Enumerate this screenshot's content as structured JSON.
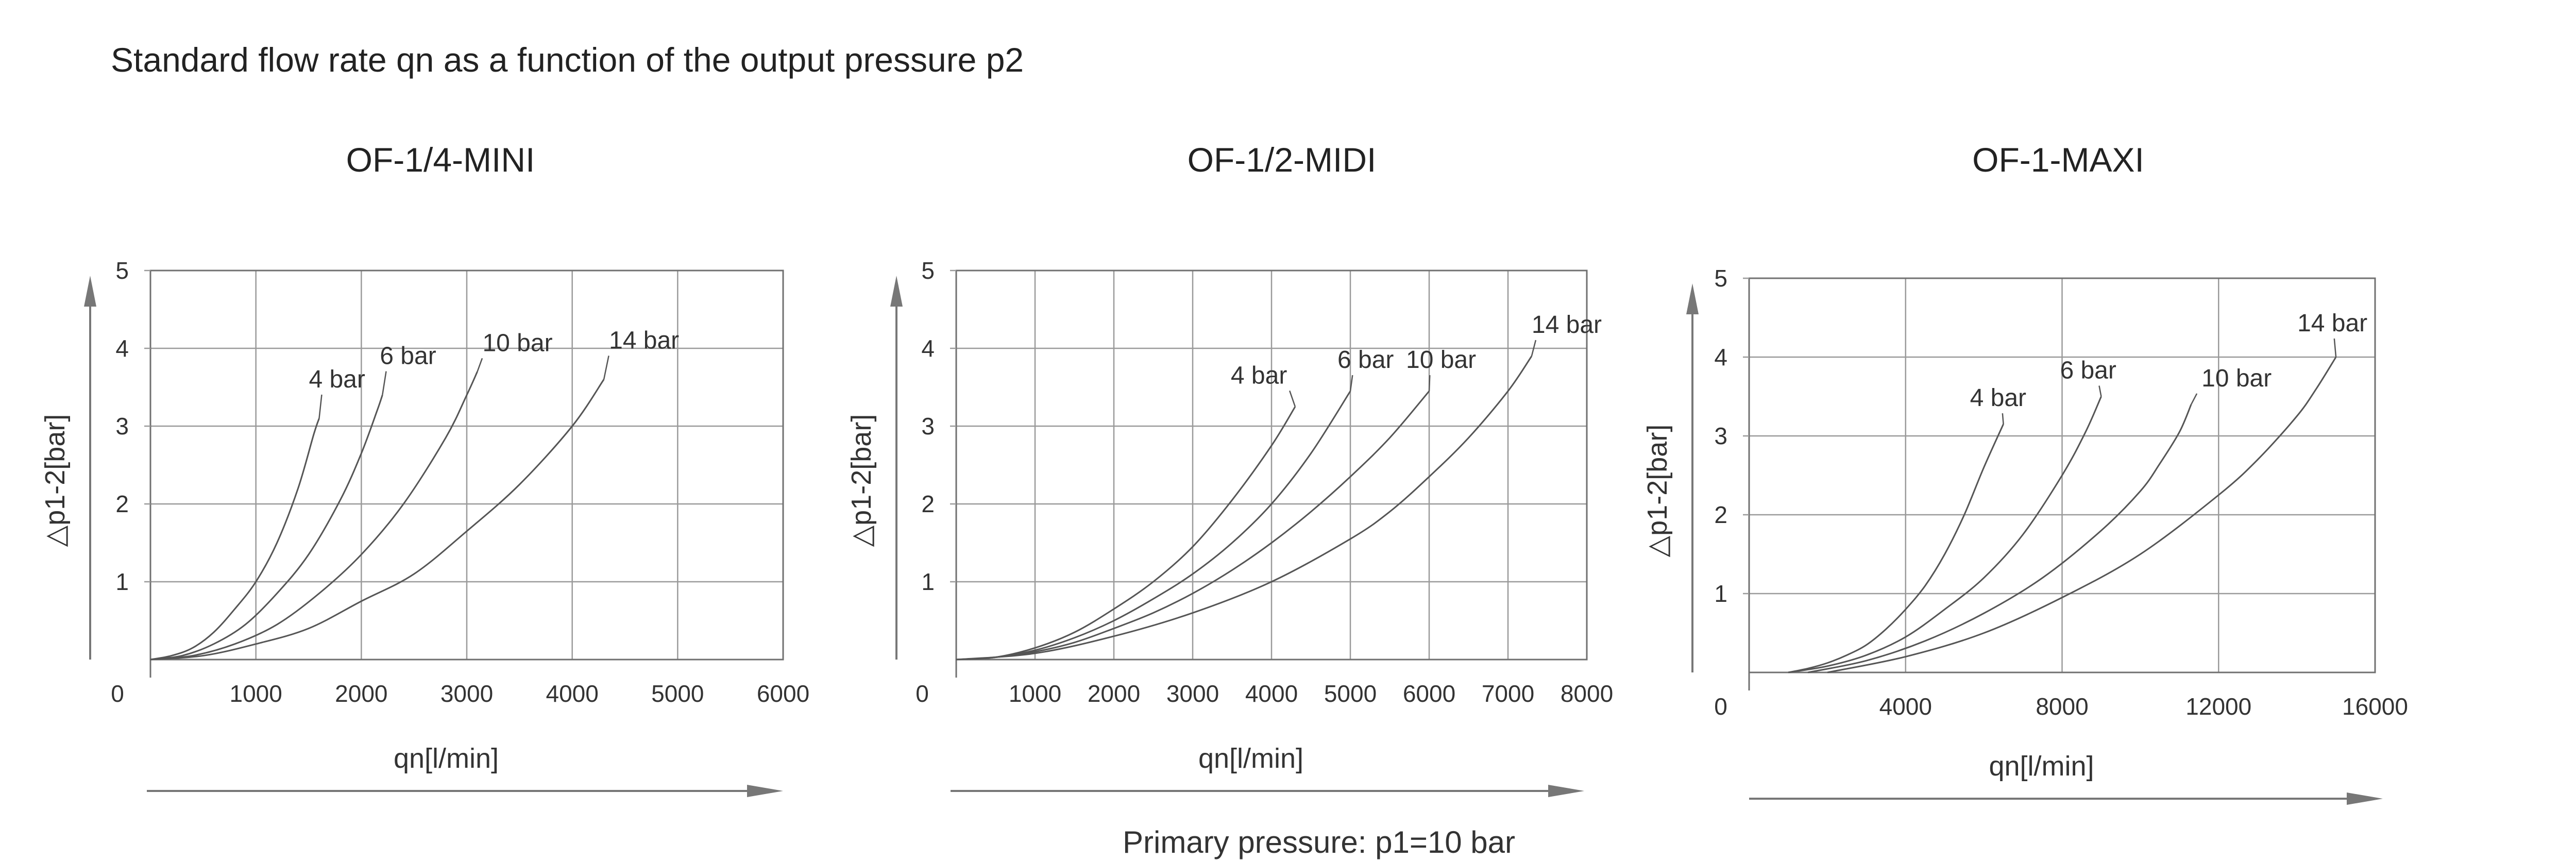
{
  "title": "Standard flow rate qn as a function of the output pressure p2",
  "footnote": "Primary pressure: p1=10 bar",
  "chart_data": [
    {
      "type": "line",
      "title": "OF-1/4-MINI",
      "xlabel": "qn[l/min]",
      "ylabel": "△p1-2[bar]",
      "xlim": [
        0,
        6000
      ],
      "ylim": [
        0,
        5
      ],
      "x_ticks": [
        0,
        1000,
        2000,
        3000,
        4000,
        5000,
        6000
      ],
      "y_ticks": [
        1,
        2,
        3,
        4,
        5
      ],
      "grid": true,
      "series": [
        {
          "name": "4 bar",
          "x": [
            0,
            200,
            400,
            600,
            800,
            1000,
            1200,
            1400,
            1550,
            1600
          ],
          "y": [
            0,
            0.05,
            0.15,
            0.35,
            0.65,
            1.0,
            1.5,
            2.2,
            2.9,
            3.1
          ],
          "label_at": [
            1600,
            3.1
          ]
        },
        {
          "name": "6 bar",
          "x": [
            0,
            300,
            600,
            900,
            1200,
            1500,
            1800,
            2000,
            2150,
            2200
          ],
          "y": [
            0,
            0.05,
            0.2,
            0.45,
            0.85,
            1.35,
            2.05,
            2.65,
            3.2,
            3.4
          ],
          "label_at": [
            2200,
            3.4
          ]
        },
        {
          "name": "10 bar",
          "x": [
            0,
            400,
            800,
            1200,
            1600,
            2000,
            2400,
            2800,
            3000,
            3100
          ],
          "y": [
            0,
            0.05,
            0.2,
            0.45,
            0.85,
            1.35,
            2.0,
            2.85,
            3.4,
            3.7
          ],
          "label_at": [
            3100,
            3.7
          ]
        },
        {
          "name": "14 bar",
          "x": [
            0,
            500,
            1000,
            1500,
            2000,
            2500,
            3000,
            3500,
            4000,
            4300
          ],
          "y": [
            0,
            0.05,
            0.2,
            0.4,
            0.75,
            1.1,
            1.65,
            2.25,
            3.0,
            3.6
          ],
          "label_at": [
            4300,
            3.6
          ]
        }
      ]
    },
    {
      "type": "line",
      "title": "OF-1/2-MIDI",
      "xlabel": "qn[l/min]",
      "ylabel": "△p1-2[bar]",
      "xlim": [
        0,
        8000
      ],
      "ylim": [
        0,
        5
      ],
      "x_ticks": [
        0,
        1000,
        2000,
        3000,
        4000,
        5000,
        6000,
        7000,
        8000
      ],
      "y_ticks": [
        1,
        2,
        3,
        4,
        5
      ],
      "grid": true,
      "series": [
        {
          "name": "4 bar",
          "x": [
            0,
            500,
            1000,
            1500,
            2000,
            2500,
            3000,
            3500,
            4000,
            4300
          ],
          "y": [
            0,
            0.03,
            0.15,
            0.35,
            0.65,
            1.0,
            1.45,
            2.05,
            2.75,
            3.25
          ],
          "label_at": [
            4300,
            3.25
          ]
        },
        {
          "name": "6 bar",
          "x": [
            0,
            500,
            1000,
            1500,
            2000,
            2500,
            3000,
            3500,
            4000,
            4500,
            5000
          ],
          "y": [
            0,
            0.03,
            0.12,
            0.28,
            0.5,
            0.78,
            1.1,
            1.5,
            2.0,
            2.65,
            3.45
          ],
          "label_at": [
            5000,
            3.45
          ]
        },
        {
          "name": "10 bar",
          "x": [
            0,
            500,
            1000,
            1500,
            2000,
            2500,
            3000,
            3500,
            4000,
            4500,
            5000,
            5500,
            6000
          ],
          "y": [
            0,
            0.03,
            0.1,
            0.22,
            0.4,
            0.6,
            0.85,
            1.15,
            1.5,
            1.9,
            2.35,
            2.85,
            3.45
          ],
          "label_at": [
            6000,
            3.45
          ]
        },
        {
          "name": "14 bar",
          "x": [
            0,
            1000,
            2000,
            3000,
            4000,
            5000,
            5500,
            6000,
            6500,
            7000,
            7300
          ],
          "y": [
            0,
            0.08,
            0.3,
            0.6,
            1.0,
            1.55,
            1.9,
            2.35,
            2.85,
            3.45,
            3.9
          ],
          "label_at": [
            7300,
            3.9
          ]
        }
      ]
    },
    {
      "type": "line",
      "title": "OF-1-MAXI",
      "xlabel": "qn[l/min]",
      "ylabel": "△p1-2[bar]",
      "xlim": [
        0,
        16000
      ],
      "ylim": [
        0,
        5
      ],
      "x_ticks": [
        0,
        4000,
        8000,
        12000,
        16000
      ],
      "y_ticks": [
        1,
        2,
        3,
        4,
        5
      ],
      "grid": true,
      "series": [
        {
          "name": "4 bar",
          "x": [
            1000,
            1500,
            2000,
            2500,
            3000,
            3500,
            4000,
            4500,
            5000,
            5500,
            6000,
            6500
          ],
          "y": [
            0,
            0.05,
            0.12,
            0.22,
            0.35,
            0.55,
            0.8,
            1.1,
            1.5,
            2.0,
            2.6,
            3.15
          ],
          "label_at": [
            6500,
            3.15
          ]
        },
        {
          "name": "6 bar",
          "x": [
            1000,
            2000,
            3000,
            4000,
            5000,
            6000,
            7000,
            8000,
            8600,
            9000
          ],
          "y": [
            0,
            0.08,
            0.22,
            0.45,
            0.8,
            1.2,
            1.75,
            2.5,
            3.05,
            3.5
          ],
          "label_at": [
            9000,
            3.5
          ]
        },
        {
          "name": "10 bar",
          "x": [
            1500,
            3000,
            4500,
            6000,
            7500,
            9000,
            10000,
            10500,
            11000,
            11300
          ],
          "y": [
            0,
            0.15,
            0.4,
            0.75,
            1.2,
            1.8,
            2.3,
            2.65,
            3.05,
            3.4
          ],
          "label_at": [
            11300,
            3.4
          ]
        },
        {
          "name": "14 bar",
          "x": [
            2000,
            4000,
            6000,
            8000,
            10000,
            12000,
            13000,
            14000,
            14500,
            15000
          ],
          "y": [
            0,
            0.2,
            0.5,
            0.95,
            1.5,
            2.25,
            2.7,
            3.25,
            3.6,
            4.0
          ],
          "label_at": [
            15000,
            4.0
          ]
        }
      ]
    }
  ]
}
